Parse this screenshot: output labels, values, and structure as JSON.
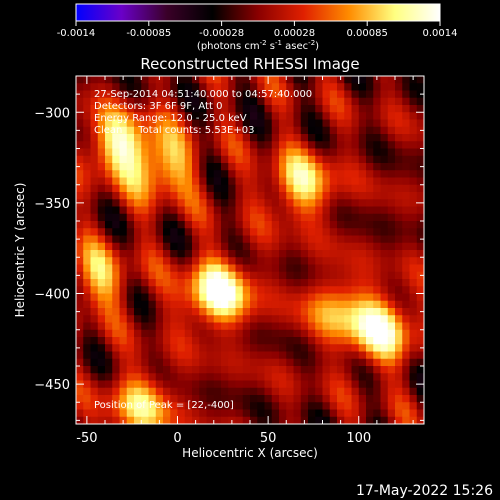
{
  "colorbar": {
    "tick_labels": [
      "-0.0014",
      "-0.00085",
      "-0.00028",
      "0.00028",
      "0.00085",
      "0.0014"
    ],
    "range": [
      -0.0014,
      0.0014
    ],
    "units_parts": [
      "(photons cm",
      "-2",
      " s",
      "-1",
      " asec",
      "-2",
      ")"
    ],
    "colors": [
      "#0000ff",
      "#6a00c8",
      "#3a0028",
      "#000000",
      "#8a0000",
      "#e02000",
      "#ff8c00",
      "#ffff80",
      "#ffffff"
    ]
  },
  "chart_data": {
    "type": "heatmap",
    "title": "Reconstructed RHESSI Image",
    "xlabel": "Heliocentric X (arcsec)",
    "ylabel": "Heliocentric Y (arcsec)",
    "xlim": [
      -56,
      136
    ],
    "ylim": [
      -472,
      -280
    ],
    "x_ticks": [
      -50,
      0,
      50,
      100
    ],
    "y_ticks": [
      -300,
      -350,
      -400,
      -450
    ],
    "info_lines": [
      "27-Sep-2014 04:51:40.000 to 04:57:40.000",
      "Detectors: 3F 6F 9F, Att 0",
      "Energy Range: 12.0 - 25.0 keV",
      "Clean     Total counts: 5.53E+03"
    ],
    "peak_label": "Position of Peak = [22,-400]",
    "peak": [
      22,
      -400
    ],
    "sources": [
      {
        "x": 22,
        "y": -400,
        "intensity": 0.0014
      },
      {
        "x": -32,
        "y": -318,
        "intensity": 0.0011
      },
      {
        "x": -8,
        "y": -330,
        "intensity": 0.0009
      },
      {
        "x": 68,
        "y": -340,
        "intensity": 0.001
      },
      {
        "x": 112,
        "y": -420,
        "intensity": 0.0012
      },
      {
        "x": -45,
        "y": -392,
        "intensity": 0.0008
      },
      {
        "x": -20,
        "y": -462,
        "intensity": 0.0009
      },
      {
        "x": 88,
        "y": -408,
        "intensity": 0.0007
      }
    ]
  },
  "footer": {
    "timestamp": "17-May-2022 15:26"
  }
}
